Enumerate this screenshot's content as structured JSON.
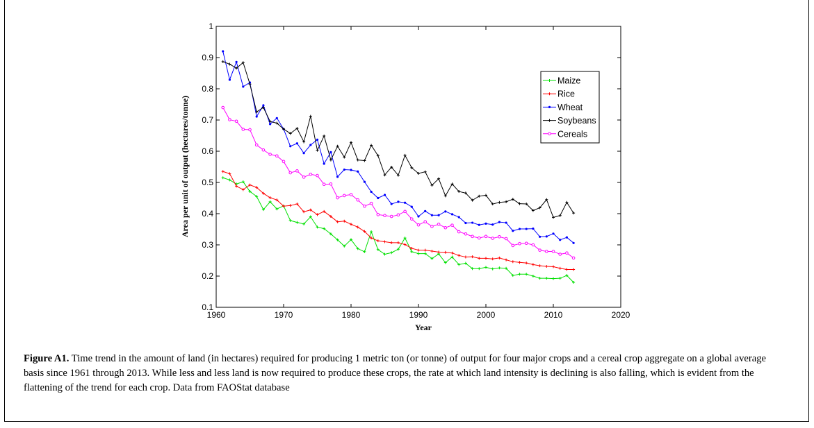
{
  "figure": {
    "caption_label": "Figure A1.",
    "caption_text": " Time trend in the amount of land (in hectares) required for producing 1 metric ton (or tonne) of output for four major crops and a cereal crop aggregate on a global average basis since 1961 through 2013. While less and less land is now required to produce these crops, the rate at which land intensity is declining is also falling, which is evident from the flattening of the trend for each crop. Data from FAOStat database"
  },
  "chart_data": {
    "type": "line",
    "title": "",
    "xlabel": "Year",
    "ylabel": "Area per unit of output (hectares/tonne)",
    "xlim": [
      1960,
      2020
    ],
    "ylim": [
      0.1,
      1
    ],
    "xticks": [
      1960,
      1970,
      1980,
      1990,
      2000,
      2010,
      2020
    ],
    "yticks": [
      0.1,
      0.2,
      0.3,
      0.4,
      0.5,
      0.6,
      0.7,
      0.8,
      0.9,
      1
    ],
    "legend_position": "top-right",
    "grid": false,
    "x": [
      1961,
      1962,
      1963,
      1964,
      1965,
      1966,
      1967,
      1968,
      1969,
      1970,
      1971,
      1972,
      1973,
      1974,
      1975,
      1976,
      1977,
      1978,
      1979,
      1980,
      1981,
      1982,
      1983,
      1984,
      1985,
      1986,
      1987,
      1988,
      1989,
      1990,
      1991,
      1992,
      1993,
      1994,
      1995,
      1996,
      1997,
      1998,
      1999,
      2000,
      2001,
      2002,
      2003,
      2004,
      2005,
      2006,
      2007,
      2008,
      2009,
      2010,
      2011,
      2012,
      2013
    ],
    "series": [
      {
        "name": "Maize",
        "color": "#00e000",
        "marker": "plus",
        "values": [
          0.515,
          0.508,
          0.495,
          0.502,
          0.471,
          0.455,
          0.413,
          0.438,
          0.415,
          0.425,
          0.378,
          0.372,
          0.367,
          0.39,
          0.357,
          0.352,
          0.335,
          0.316,
          0.296,
          0.317,
          0.288,
          0.278,
          0.342,
          0.285,
          0.27,
          0.275,
          0.286,
          0.322,
          0.278,
          0.272,
          0.272,
          0.256,
          0.271,
          0.243,
          0.261,
          0.237,
          0.241,
          0.224,
          0.224,
          0.228,
          0.223,
          0.226,
          0.225,
          0.202,
          0.206,
          0.206,
          0.2,
          0.193,
          0.193,
          0.192,
          0.193,
          0.202,
          0.18
        ]
      },
      {
        "name": "Rice",
        "color": "#ff0000",
        "marker": "plus",
        "values": [
          0.535,
          0.528,
          0.488,
          0.477,
          0.492,
          0.484,
          0.465,
          0.451,
          0.444,
          0.424,
          0.426,
          0.431,
          0.406,
          0.412,
          0.397,
          0.407,
          0.391,
          0.374,
          0.376,
          0.366,
          0.357,
          0.343,
          0.322,
          0.313,
          0.31,
          0.307,
          0.307,
          0.301,
          0.289,
          0.283,
          0.283,
          0.28,
          0.277,
          0.276,
          0.274,
          0.266,
          0.261,
          0.262,
          0.257,
          0.257,
          0.255,
          0.258,
          0.252,
          0.246,
          0.244,
          0.242,
          0.237,
          0.233,
          0.231,
          0.23,
          0.225,
          0.221,
          0.221
        ]
      },
      {
        "name": "Wheat",
        "color": "#0000ff",
        "marker": "dot",
        "values": [
          0.92,
          0.829,
          0.886,
          0.807,
          0.82,
          0.711,
          0.747,
          0.687,
          0.706,
          0.671,
          0.616,
          0.625,
          0.594,
          0.62,
          0.637,
          0.56,
          0.597,
          0.518,
          0.541,
          0.54,
          0.535,
          0.502,
          0.47,
          0.45,
          0.46,
          0.431,
          0.438,
          0.435,
          0.422,
          0.391,
          0.408,
          0.395,
          0.395,
          0.407,
          0.398,
          0.389,
          0.37,
          0.371,
          0.364,
          0.368,
          0.365,
          0.373,
          0.371,
          0.345,
          0.351,
          0.351,
          0.352,
          0.326,
          0.327,
          0.336,
          0.316,
          0.324,
          0.306
        ]
      },
      {
        "name": "Soybeans",
        "color": "#000000",
        "marker": "plus",
        "values": [
          0.887,
          0.879,
          0.866,
          0.884,
          0.815,
          0.726,
          0.74,
          0.695,
          0.69,
          0.671,
          0.657,
          0.673,
          0.63,
          0.712,
          0.603,
          0.649,
          0.572,
          0.616,
          0.581,
          0.628,
          0.572,
          0.57,
          0.619,
          0.586,
          0.524,
          0.549,
          0.523,
          0.587,
          0.547,
          0.529,
          0.534,
          0.491,
          0.512,
          0.457,
          0.495,
          0.471,
          0.466,
          0.443,
          0.456,
          0.459,
          0.431,
          0.436,
          0.438,
          0.446,
          0.432,
          0.431,
          0.41,
          0.419,
          0.445,
          0.388,
          0.394,
          0.436,
          0.402
        ]
      },
      {
        "name": "Cereals",
        "color": "#ff00ff",
        "marker": "circle",
        "values": [
          0.74,
          0.701,
          0.696,
          0.67,
          0.669,
          0.62,
          0.604,
          0.59,
          0.585,
          0.567,
          0.531,
          0.537,
          0.517,
          0.526,
          0.522,
          0.494,
          0.495,
          0.451,
          0.458,
          0.461,
          0.444,
          0.424,
          0.433,
          0.397,
          0.394,
          0.391,
          0.396,
          0.407,
          0.383,
          0.364,
          0.374,
          0.359,
          0.366,
          0.355,
          0.363,
          0.342,
          0.335,
          0.327,
          0.322,
          0.327,
          0.321,
          0.326,
          0.32,
          0.298,
          0.304,
          0.305,
          0.3,
          0.283,
          0.279,
          0.279,
          0.27,
          0.274,
          0.258
        ]
      }
    ]
  }
}
